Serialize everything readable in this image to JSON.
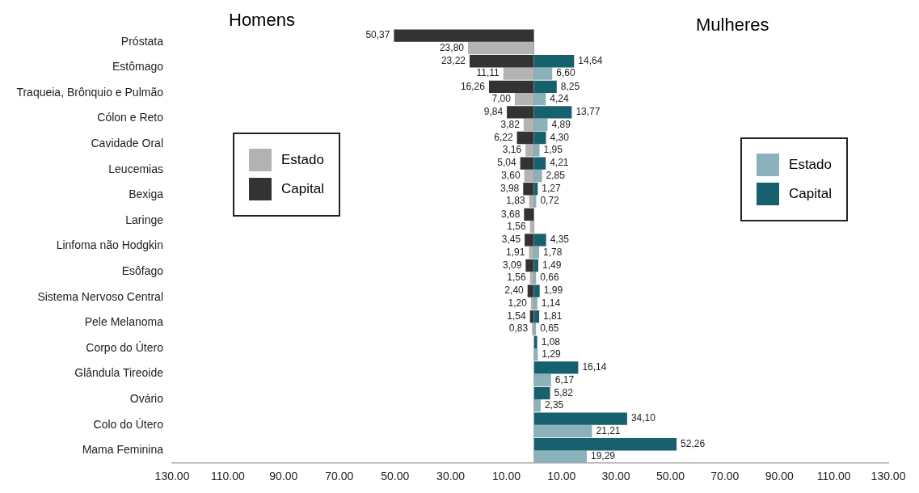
{
  "chart_data": [
    {
      "type": "bar",
      "orientation": "horizontal",
      "annotations": [
        "Homens"
      ],
      "categories": [
        "Próstata",
        "Estômago",
        "Traqueia, Brônquio e Pulmão",
        "Cólon e Reto",
        "Cavidade Oral",
        "Leucemias",
        "Bexiga",
        "Laringe",
        "Linfoma não Hodgkin",
        "Esôfago",
        "Sistema Nervoso Central",
        "Pele Melanoma",
        "Corpo do Útero",
        "Glândula Tireoide",
        "Ovário",
        "Colo do Útero",
        "Mama Feminina"
      ],
      "series": [
        {
          "name": "Capital",
          "color": "#333333",
          "values": [
            50.37,
            23.22,
            16.26,
            9.84,
            6.22,
            5.04,
            3.98,
            3.68,
            3.45,
            3.09,
            2.4,
            1.54,
            null,
            null,
            null,
            null,
            null
          ],
          "value_labels": [
            "50,37",
            "23,22",
            "16,26",
            "9,84",
            "6,22",
            "5,04",
            "3,98",
            "3,68",
            "3,45",
            "3,09",
            "2,40",
            "1,54",
            null,
            null,
            null,
            null,
            null
          ]
        },
        {
          "name": "Estado",
          "color": "#b3b3b3",
          "values": [
            23.8,
            11.11,
            7.0,
            3.82,
            3.16,
            3.6,
            1.83,
            1.56,
            1.91,
            1.56,
            1.2,
            0.83,
            null,
            null,
            null,
            null,
            null
          ],
          "value_labels": [
            "23,80",
            "11,11",
            "7,00",
            "3,82",
            "3,16",
            "3,60",
            "1,83",
            "1,56",
            "1,91",
            "1,56",
            "1,20",
            "0,83",
            null,
            null,
            null,
            null,
            null
          ]
        }
      ],
      "xlim": [
        130,
        0
      ],
      "xticks": [
        {
          "value": 130,
          "label": "130.00"
        },
        {
          "value": 110,
          "label": "110.00"
        },
        {
          "value": 90,
          "label": "90.00"
        },
        {
          "value": 70,
          "label": "70.00"
        },
        {
          "value": 50,
          "label": "50.00"
        },
        {
          "value": 30,
          "label": "30.00"
        },
        {
          "value": 10,
          "label": "10.00"
        }
      ],
      "ref_lines": [
        {
          "axis": "x",
          "value": 0,
          "color": "#999999"
        }
      ],
      "legend": "left",
      "grid": false
    },
    {
      "type": "bar",
      "orientation": "horizontal",
      "annotations": [
        "Mulheres"
      ],
      "tick_labels": "x",
      "series": [
        {
          "name": "Capital",
          "color": "#17606e",
          "values": [
            null,
            14.64,
            8.25,
            13.77,
            4.3,
            4.21,
            1.27,
            null,
            4.35,
            1.49,
            1.99,
            1.81,
            1.08,
            16.14,
            5.82,
            34.1,
            52.26
          ],
          "value_labels": [
            null,
            "14,64",
            "8,25",
            "13,77",
            "4,30",
            "4,21",
            "1,27",
            null,
            "4,35",
            "1,49",
            "1,99",
            "1,81",
            "1,08",
            "16,14",
            "5,82",
            "34,10",
            "52,26"
          ]
        },
        {
          "name": "Estado",
          "color": "#8bb2ba",
          "values": [
            null,
            6.6,
            4.24,
            4.89,
            1.95,
            2.85,
            0.72,
            null,
            1.78,
            0.66,
            1.14,
            0.65,
            1.29,
            6.17,
            2.35,
            21.21,
            19.29
          ],
          "value_labels": [
            null,
            "6,60",
            "4,24",
            "4,89",
            "1,95",
            "2,85",
            "0,72",
            null,
            "1,78",
            "0,66",
            "1,14",
            "0,65",
            "1,29",
            "6,17",
            "2,35",
            "21,21",
            "19,29"
          ]
        }
      ],
      "xlim": [
        0,
        130
      ],
      "xticks": [
        {
          "value": 10,
          "label": "10.00"
        },
        {
          "value": 30,
          "label": "30.00"
        },
        {
          "value": 50,
          "label": "50.00"
        },
        {
          "value": 70,
          "label": "70.00"
        },
        {
          "value": 90,
          "label": "90.00"
        },
        {
          "value": 110,
          "label": "110.00"
        },
        {
          "value": 130,
          "label": "130.00"
        }
      ],
      "legend": "right",
      "grid": false
    }
  ]
}
